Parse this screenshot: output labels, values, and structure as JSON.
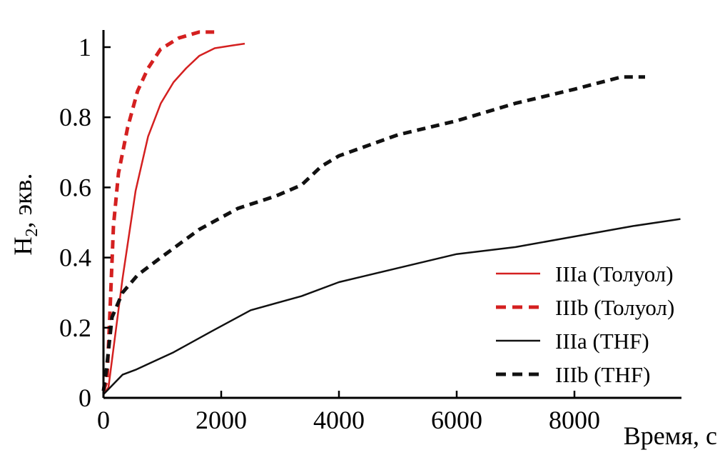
{
  "chart_data": {
    "type": "line",
    "title": "",
    "xlabel": "Время, с",
    "ylabel_main": "H",
    "ylabel_sub": "2",
    "ylabel_rest": ", экв.",
    "xlim": [
      0,
      9800
    ],
    "ylim": [
      0,
      1.05
    ],
    "xticks": [
      0,
      2000,
      4000,
      6000,
      8000
    ],
    "xtick_labels": [
      "0",
      "2000",
      "4000",
      "6000",
      "8000"
    ],
    "yticks": [
      0,
      0.2,
      0.4,
      0.6,
      0.8,
      1
    ],
    "ytick_labels": [
      "0",
      "0.2",
      "0.4",
      "0.6",
      "0.8",
      "1"
    ],
    "grid": false,
    "legend_position": "bottom-right",
    "series": [
      {
        "name": "IIIa (Толуол)",
        "color": "#d42020",
        "dash": "solid",
        "x": [
          0,
          85,
          324,
          545,
          757,
          975,
          1190,
          1405,
          1625,
          1890,
          2200,
          2400
        ],
        "y": [
          0.01,
          0.03,
          0.34,
          0.59,
          0.745,
          0.84,
          0.9,
          0.94,
          0.975,
          0.997,
          1.005,
          1.01
        ]
      },
      {
        "name": "IIIb (Толуол)",
        "color": "#d42020",
        "dash": "dashed",
        "x": [
          0,
          60,
          107,
          170,
          255,
          410,
          580,
          757,
          970,
          1280,
          1625,
          1900
        ],
        "y": [
          0.02,
          0.05,
          0.23,
          0.49,
          0.64,
          0.77,
          0.875,
          0.94,
          0.994,
          1.026,
          1.043,
          1.043
        ]
      },
      {
        "name": "IIIa (THF)",
        "color": "#111111",
        "dash": "solid",
        "x": [
          0,
          324,
          545,
          1190,
          1840,
          2500,
          3365,
          4000,
          5000,
          6000,
          7000,
          8000,
          9000,
          9800
        ],
        "y": [
          0.01,
          0.066,
          0.08,
          0.13,
          0.19,
          0.25,
          0.29,
          0.33,
          0.37,
          0.41,
          0.43,
          0.46,
          0.49,
          0.51
        ]
      },
      {
        "name": "IIIb (THF)",
        "color": "#111111",
        "dash": "dashed",
        "x": [
          0,
          50,
          146,
          324,
          580,
          975,
          1625,
          2280,
          2935,
          3365,
          3700,
          4000,
          5000,
          6000,
          7000,
          8000,
          8800,
          9200
        ],
        "y": [
          0.02,
          0.08,
          0.23,
          0.3,
          0.35,
          0.4,
          0.48,
          0.54,
          0.576,
          0.607,
          0.66,
          0.69,
          0.75,
          0.79,
          0.84,
          0.88,
          0.915,
          0.915
        ]
      }
    ]
  }
}
